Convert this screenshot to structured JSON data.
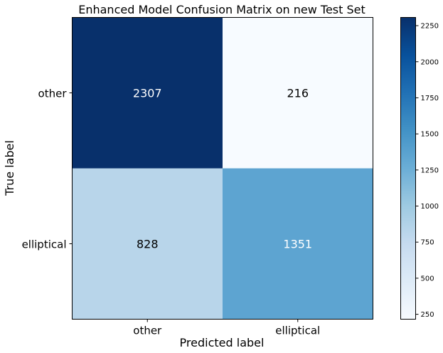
{
  "chart_data": {
    "type": "heatmap",
    "title": "Enhanced Model Confusion Matrix on new Test Set",
    "xlabel": "Predicted label",
    "ylabel": "True label",
    "x_categories": [
      "other",
      "elliptical"
    ],
    "y_categories": [
      "other",
      "elliptical"
    ],
    "values": [
      [
        2307,
        216
      ],
      [
        828,
        1351
      ]
    ],
    "colormap": "Blues",
    "colorbar": {
      "range": [
        216,
        2307
      ],
      "ticks": [
        250,
        500,
        750,
        1000,
        1250,
        1500,
        1750,
        2000,
        2250
      ]
    },
    "cell_text_colors": {
      "dark": "#ffffff",
      "light": "#000000"
    }
  }
}
